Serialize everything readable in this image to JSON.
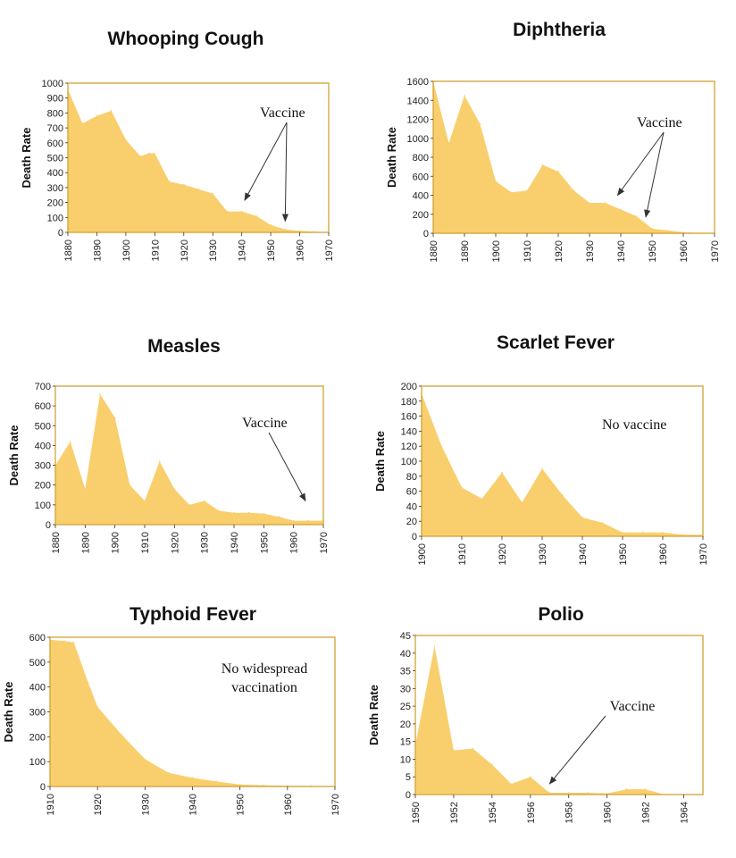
{
  "colors": {
    "fill": "#f9cf6d",
    "frame": "#d4a234",
    "arrow": "#333333"
  },
  "chart_data": [
    {
      "type": "area",
      "title": "Whooping Cough",
      "ylabel": "Death Rate",
      "ylim": [
        0,
        1000
      ],
      "yticks": [
        0,
        100,
        200,
        300,
        400,
        500,
        600,
        700,
        800,
        900,
        1000
      ],
      "xlim": [
        1880,
        1970
      ],
      "xticks": [
        1880,
        1890,
        1900,
        1910,
        1920,
        1930,
        1940,
        1950,
        1960,
        1970
      ],
      "x": [
        1880,
        1885,
        1890,
        1895,
        1900,
        1905,
        1908,
        1910,
        1915,
        1920,
        1925,
        1930,
        1935,
        1940,
        1945,
        1950,
        1955,
        1960,
        1965,
        1970
      ],
      "y": [
        960,
        730,
        780,
        815,
        620,
        510,
        530,
        530,
        340,
        320,
        290,
        260,
        140,
        140,
        110,
        50,
        20,
        10,
        5,
        2
      ],
      "annotation": "Vaccine",
      "arrow_targets": [
        [
          1941,
          215
        ],
        [
          1955,
          75
        ]
      ]
    },
    {
      "type": "area",
      "title": "Diphtheria",
      "ylabel": "Death Rate",
      "ylim": [
        0,
        1600
      ],
      "yticks": [
        0,
        200,
        400,
        600,
        800,
        1000,
        1200,
        1400,
        1600
      ],
      "xlim": [
        1880,
        1970
      ],
      "xticks": [
        1880,
        1890,
        1900,
        1910,
        1920,
        1930,
        1940,
        1950,
        1960,
        1970
      ],
      "x": [
        1880,
        1885,
        1890,
        1895,
        1900,
        1905,
        1910,
        1915,
        1920,
        1925,
        1930,
        1935,
        1940,
        1945,
        1950,
        1955,
        1960,
        1965,
        1970
      ],
      "y": [
        1600,
        950,
        1450,
        1150,
        550,
        430,
        450,
        720,
        650,
        450,
        320,
        320,
        250,
        180,
        50,
        30,
        10,
        5,
        2
      ],
      "annotation": "Vaccine",
      "arrow_targets": [
        [
          1939,
          400
        ],
        [
          1948,
          170
        ]
      ]
    },
    {
      "type": "area",
      "title": "Measles",
      "ylabel": "Death Rate",
      "ylim": [
        0,
        700
      ],
      "yticks": [
        0,
        100,
        200,
        300,
        400,
        500,
        600,
        700
      ],
      "xlim": [
        1880,
        1970
      ],
      "xticks": [
        1880,
        1890,
        1900,
        1910,
        1920,
        1930,
        1940,
        1950,
        1960,
        1970
      ],
      "x": [
        1880,
        1885,
        1890,
        1895,
        1900,
        1905,
        1910,
        1915,
        1920,
        1925,
        1930,
        1935,
        1940,
        1945,
        1950,
        1955,
        1960,
        1965,
        1970
      ],
      "y": [
        300,
        420,
        180,
        660,
        540,
        200,
        120,
        320,
        180,
        100,
        120,
        70,
        60,
        60,
        55,
        40,
        20,
        20,
        20
      ],
      "annotation": "Vaccine",
      "arrow_targets": [
        [
          1964,
          120
        ]
      ]
    },
    {
      "type": "area",
      "title": "Scarlet Fever",
      "ylabel": "Death Rate",
      "ylim": [
        0,
        200
      ],
      "yticks": [
        0,
        20,
        40,
        60,
        80,
        100,
        120,
        140,
        160,
        180,
        200
      ],
      "xlim": [
        1900,
        1970
      ],
      "xticks": [
        1900,
        1910,
        1920,
        1930,
        1940,
        1950,
        1960,
        1970
      ],
      "x": [
        1900,
        1905,
        1910,
        1915,
        1920,
        1925,
        1930,
        1935,
        1940,
        1945,
        1950,
        1955,
        1960,
        1965,
        1970
      ],
      "y": [
        190,
        120,
        65,
        50,
        85,
        45,
        90,
        55,
        25,
        18,
        5,
        5,
        5,
        2,
        2
      ],
      "annotation": "No vaccine",
      "arrow_targets": []
    },
    {
      "type": "area",
      "title": "Typhoid Fever",
      "ylabel": "Death Rate",
      "ylim": [
        0,
        600
      ],
      "yticks": [
        0,
        100,
        200,
        300,
        400,
        500,
        600
      ],
      "xlim": [
        1910,
        1970
      ],
      "xticks": [
        1910,
        1920,
        1930,
        1940,
        1950,
        1960,
        1970
      ],
      "x": [
        1910,
        1913,
        1915,
        1918,
        1920,
        1925,
        1930,
        1935,
        1940,
        1945,
        1950,
        1955,
        1960,
        1965,
        1970
      ],
      "y": [
        590,
        585,
        580,
        420,
        320,
        210,
        110,
        55,
        35,
        20,
        8,
        5,
        3,
        2,
        1
      ],
      "annotation": "No widespread vaccination",
      "arrow_targets": []
    },
    {
      "type": "area",
      "title": "Polio",
      "ylabel": "Death Rate",
      "ylim": [
        0,
        45
      ],
      "yticks": [
        0,
        5,
        10,
        15,
        20,
        25,
        30,
        35,
        40,
        45
      ],
      "xlim": [
        1950,
        1965
      ],
      "xticks": [
        1950,
        1952,
        1954,
        1956,
        1958,
        1960,
        1962,
        1964
      ],
      "x": [
        1950,
        1951,
        1952,
        1953,
        1954,
        1955,
        1956,
        1957,
        1958,
        1959,
        1960,
        1961,
        1962,
        1963,
        1964,
        1965
      ],
      "y": [
        14,
        42,
        12.5,
        13,
        8.5,
        3,
        5,
        0.5,
        0.5,
        0.5,
        0.3,
        1.5,
        1.5,
        0,
        0,
        0
      ],
      "annotation": "Vaccine",
      "arrow_targets": [
        [
          1957,
          3
        ]
      ]
    }
  ]
}
